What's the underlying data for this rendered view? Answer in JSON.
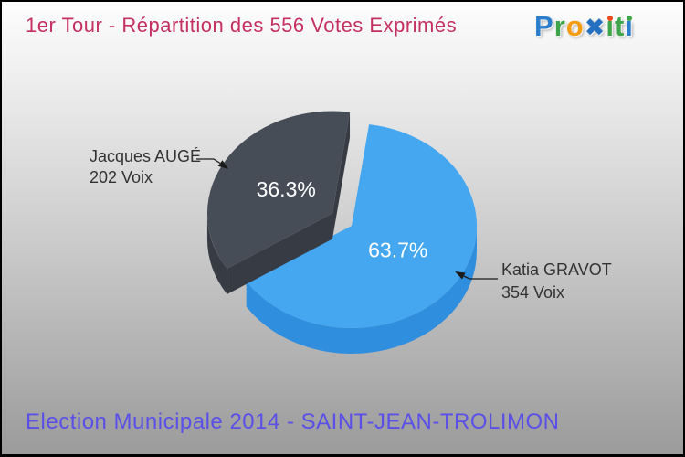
{
  "header": {
    "title": "1er Tour - Répartition des 556 Votes Exprimés"
  },
  "logo": {
    "text": "Proxiti",
    "letters": [
      {
        "glyph": "P",
        "color": "#2b7ecb"
      },
      {
        "glyph": "r",
        "color": "#3ea54a"
      },
      {
        "glyph": "o",
        "color": "#f39c12"
      },
      {
        "glyph": "✖",
        "color": "#2570bf",
        "big": true
      },
      {
        "glyph": "ı",
        "color": "#3ea54a",
        "dot": "#e8491d"
      },
      {
        "glyph": "t",
        "color": "#3ea54a"
      },
      {
        "glyph": "ı",
        "color": "#2b7ecb",
        "dot": "#3ea54a"
      }
    ]
  },
  "footer": {
    "caption": "Election Municipale 2014 - SAINT-JEAN-TROLIMON"
  },
  "colors": {
    "title": "#c53062",
    "footer": "#5a50e8",
    "label_text": "#333333",
    "leader_line": "#1a1a1a"
  },
  "chart_data": {
    "type": "pie",
    "style": "3d-exploded",
    "title": "1er Tour - Répartition des 556 Votes Exprimés",
    "total_votes": 556,
    "unit": "Voix",
    "direction": "clockwise",
    "start_angle_deg": 8,
    "labels_color": "#ffffff",
    "slices": [
      {
        "label": "Katia GRAVOT",
        "votes": 354,
        "pct": 63.7,
        "pct_label": "63.7%",
        "votes_label": "354 Voix",
        "color": "#45a7f0",
        "side_color": "#2f8ede",
        "exploded": false
      },
      {
        "label": "Jacques AUGÉ",
        "votes": 202,
        "pct": 36.3,
        "pct_label": "36.3%",
        "votes_label": "202 Voix",
        "color": "#474d57",
        "side_color": "#363b44",
        "exploded": true
      }
    ]
  }
}
